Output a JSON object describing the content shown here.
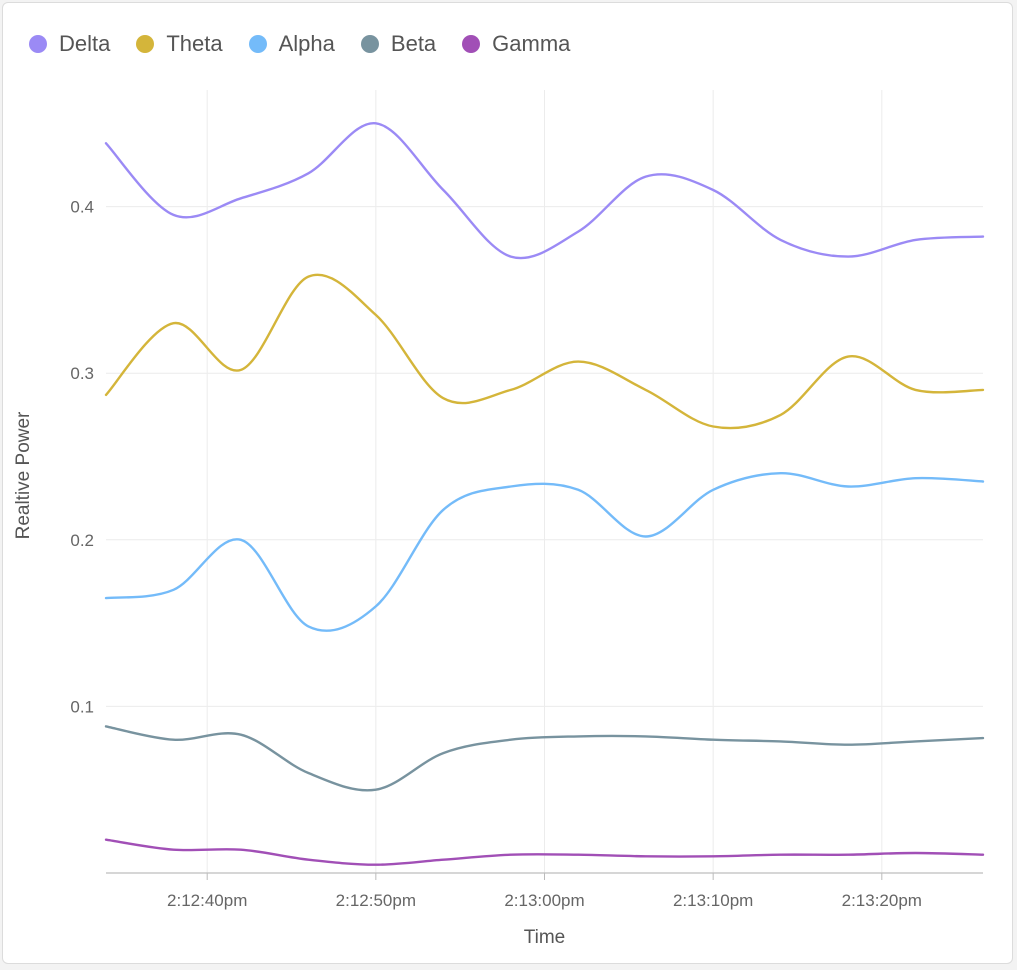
{
  "chart_data": {
    "type": "line",
    "title": "",
    "xlabel": "Time",
    "ylabel": "Realtive Power",
    "x": [
      "2:12:34pm",
      "2:12:38pm",
      "2:12:42pm",
      "2:12:46pm",
      "2:12:50pm",
      "2:12:54pm",
      "2:12:58pm",
      "2:13:02pm",
      "2:13:06pm",
      "2:13:10pm",
      "2:13:14pm",
      "2:13:18pm",
      "2:13:22pm",
      "2:13:26pm"
    ],
    "x_ticks": [
      "2:12:40pm",
      "2:12:50pm",
      "2:13:00pm",
      "2:13:10pm",
      "2:13:20pm"
    ],
    "y_ticks": [
      0.1,
      0.2,
      0.3,
      0.4
    ],
    "ylim": [
      0,
      0.47
    ],
    "grid": true,
    "legend": "top-left",
    "series": [
      {
        "name": "Delta",
        "color": "#9b8af5",
        "values": [
          0.438,
          0.395,
          0.405,
          0.42,
          0.45,
          0.41,
          0.37,
          0.385,
          0.418,
          0.41,
          0.38,
          0.37,
          0.38,
          0.382
        ]
      },
      {
        "name": "Theta",
        "color": "#d4b53a",
        "values": [
          0.287,
          0.33,
          0.302,
          0.358,
          0.335,
          0.285,
          0.29,
          0.307,
          0.29,
          0.268,
          0.275,
          0.31,
          0.29,
          0.29
        ]
      },
      {
        "name": "Alpha",
        "color": "#74bbf9",
        "values": [
          0.165,
          0.17,
          0.2,
          0.148,
          0.16,
          0.218,
          0.232,
          0.23,
          0.202,
          0.23,
          0.24,
          0.232,
          0.237,
          0.235
        ]
      },
      {
        "name": "Beta",
        "color": "#78939f",
        "values": [
          0.088,
          0.08,
          0.083,
          0.06,
          0.05,
          0.072,
          0.08,
          0.082,
          0.082,
          0.08,
          0.079,
          0.077,
          0.079,
          0.081
        ]
      },
      {
        "name": "Gamma",
        "color": "#a14fb6",
        "values": [
          0.02,
          0.014,
          0.014,
          0.008,
          0.005,
          0.008,
          0.011,
          0.011,
          0.01,
          0.01,
          0.011,
          0.011,
          0.012,
          0.011
        ]
      }
    ]
  }
}
